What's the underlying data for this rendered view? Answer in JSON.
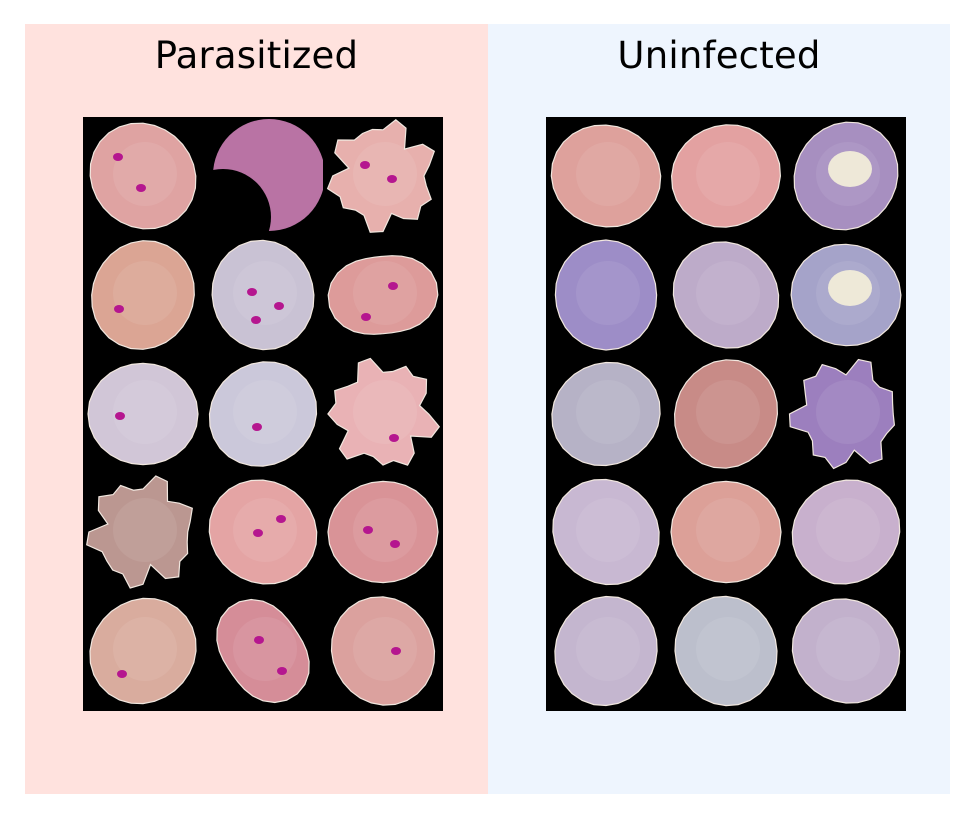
{
  "panels": [
    {
      "title": "Parasitized",
      "background": "#ffe2de",
      "cells": [
        {
          "fill": "#dfa3a2",
          "shape": "round",
          "spots": 2
        },
        {
          "fill": "#b973a4",
          "shape": "crescent",
          "spots": 0
        },
        {
          "fill": "#e7b0ad",
          "shape": "ragged",
          "spots": 2
        },
        {
          "fill": "#dba594",
          "shape": "round",
          "spots": 1
        },
        {
          "fill": "#c9c2d4",
          "shape": "round",
          "spots": 3
        },
        {
          "fill": "#dd9b9a",
          "shape": "oval",
          "spots": 2
        },
        {
          "fill": "#d1c6d7",
          "shape": "round",
          "spots": 1
        },
        {
          "fill": "#cbc8da",
          "shape": "round",
          "spots": 1
        },
        {
          "fill": "#e9b2b5",
          "shape": "ragged",
          "spots": 1
        },
        {
          "fill": "#bb9791",
          "shape": "ragged",
          "spots": 0
        },
        {
          "fill": "#e4a4a4",
          "shape": "round",
          "spots": 2
        },
        {
          "fill": "#d99397",
          "shape": "round",
          "spots": 2
        },
        {
          "fill": "#d9ac9e",
          "shape": "round",
          "spots": 1
        },
        {
          "fill": "#d58d98",
          "shape": "oval",
          "spots": 2
        },
        {
          "fill": "#dba19e",
          "shape": "round",
          "spots": 1
        }
      ]
    },
    {
      "title": "Uninfected",
      "background": "#eef5fe",
      "cells": [
        {
          "fill": "#dea19c",
          "shape": "round",
          "spots": 0
        },
        {
          "fill": "#e3a1a1",
          "shape": "round",
          "spots": 0
        },
        {
          "fill": "#a78fc0",
          "shape": "round",
          "spots": 0,
          "pale_center": true
        },
        {
          "fill": "#9d8dc7",
          "shape": "round",
          "spots": 0
        },
        {
          "fill": "#bdabc9",
          "shape": "round",
          "spots": 0
        },
        {
          "fill": "#a5a3c9",
          "shape": "round",
          "spots": 0,
          "pale_center": true
        },
        {
          "fill": "#b6b2c6",
          "shape": "round",
          "spots": 0
        },
        {
          "fill": "#c88b87",
          "shape": "round",
          "spots": 0
        },
        {
          "fill": "#9c7fbe",
          "shape": "ragged",
          "spots": 0
        },
        {
          "fill": "#c8b8d2",
          "shape": "round",
          "spots": 0
        },
        {
          "fill": "#dca098",
          "shape": "round",
          "spots": 0
        },
        {
          "fill": "#c8b0cd",
          "shape": "round",
          "spots": 0
        },
        {
          "fill": "#c4b6cf",
          "shape": "round",
          "spots": 0
        },
        {
          "fill": "#bcbfcc",
          "shape": "round",
          "spots": 0
        },
        {
          "fill": "#c2b1cc",
          "shape": "round",
          "spots": 0
        }
      ]
    }
  ]
}
